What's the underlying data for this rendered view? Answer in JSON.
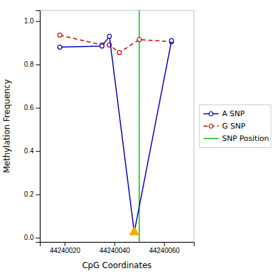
{
  "chart_data": {
    "type": "line",
    "xlabel": "CpG Coordinates",
    "ylabel": "Methylation Frequency",
    "series": [
      {
        "name": "A SNP",
        "color": "#0000BB",
        "marker": "circle",
        "line_style": "solid",
        "x": [
          44240018,
          44240035,
          44240038,
          44240048,
          44240063
        ],
        "values": [
          0.88,
          0.885,
          0.93,
          0.025,
          0.91
        ]
      },
      {
        "name": "G SNP",
        "color": "#CC0000",
        "marker": "circle",
        "line_style": "dashed",
        "x": [
          44240018,
          44240035,
          44240038,
          44240042,
          44240050,
          44240063
        ],
        "values": [
          0.935,
          0.89,
          0.89,
          0.855,
          0.915,
          0.905
        ]
      }
    ],
    "vlines": [
      {
        "name": "SNP Position",
        "x": 44240050,
        "color": "#00BB00"
      }
    ],
    "highlight": {
      "x": 44240048,
      "y": 0.025,
      "color": "#FFA500",
      "marker": "triangle"
    },
    "xlim": [
      44240010,
      44240072
    ],
    "ylim": [
      -0.02,
      1.05
    ],
    "xticks": [
      44240020,
      44240040,
      44240060
    ],
    "yticks": [
      {
        "value": 0.0,
        "label": "0.0"
      },
      0.2,
      0.4,
      0.6,
      0.8,
      {
        "value": 1.0,
        "label": "1.0"
      }
    ],
    "legend": "center right"
  }
}
